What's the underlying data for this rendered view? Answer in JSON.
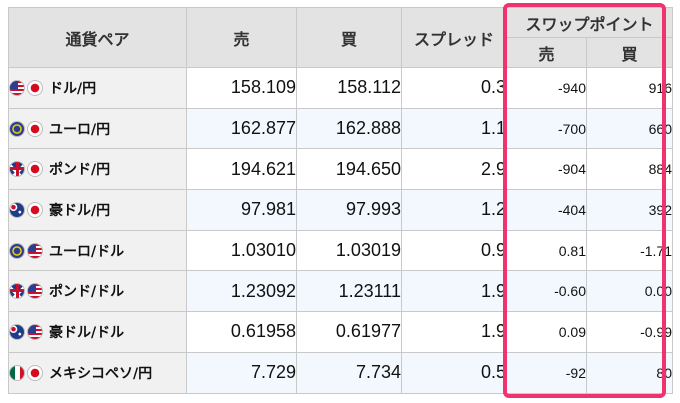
{
  "header": {
    "pair": "通貨ペア",
    "sell": "売",
    "buy": "買",
    "spread": "スプレッド",
    "swap_group": "スワップポイント",
    "swap_sell": "売",
    "swap_buy": "買"
  },
  "rows": [
    {
      "flags": [
        "us",
        "jp"
      ],
      "pair": "ドル/円",
      "sell": "158.109",
      "buy": "158.112",
      "spread": "0.3",
      "swap_sell": "-940",
      "swap_buy": "916"
    },
    {
      "flags": [
        "eu",
        "jp"
      ],
      "pair": "ユーロ/円",
      "sell": "162.877",
      "buy": "162.888",
      "spread": "1.1",
      "swap_sell": "-700",
      "swap_buy": "660"
    },
    {
      "flags": [
        "gb",
        "jp"
      ],
      "pair": "ポンド/円",
      "sell": "194.621",
      "buy": "194.650",
      "spread": "2.9",
      "swap_sell": "-904",
      "swap_buy": "884"
    },
    {
      "flags": [
        "au",
        "jp"
      ],
      "pair": "豪ドル/円",
      "sell": "97.981",
      "buy": "97.993",
      "spread": "1.2",
      "swap_sell": "-404",
      "swap_buy": "392"
    },
    {
      "flags": [
        "eu",
        "us"
      ],
      "pair": "ユーロ/ドル",
      "sell": "1.03010",
      "buy": "1.03019",
      "spread": "0.9",
      "swap_sell": "0.81",
      "swap_buy": "-1.71"
    },
    {
      "flags": [
        "gb",
        "us"
      ],
      "pair": "ポンド/ドル",
      "sell": "1.23092",
      "buy": "1.23111",
      "spread": "1.9",
      "swap_sell": "-0.60",
      "swap_buy": "0.00"
    },
    {
      "flags": [
        "au",
        "us"
      ],
      "pair": "豪ドル/ドル",
      "sell": "0.61958",
      "buy": "0.61977",
      "spread": "1.9",
      "swap_sell": "0.09",
      "swap_buy": "-0.99"
    },
    {
      "flags": [
        "mx",
        "jp"
      ],
      "pair": "メキシコペソ/円",
      "sell": "7.729",
      "buy": "7.734",
      "spread": "0.5",
      "swap_sell": "-92",
      "swap_buy": "80"
    }
  ],
  "colors": {
    "highlight_border": "#f0336f",
    "header_bg": "#e3e3e3",
    "row_alt_bg": "#f2f8fd"
  }
}
